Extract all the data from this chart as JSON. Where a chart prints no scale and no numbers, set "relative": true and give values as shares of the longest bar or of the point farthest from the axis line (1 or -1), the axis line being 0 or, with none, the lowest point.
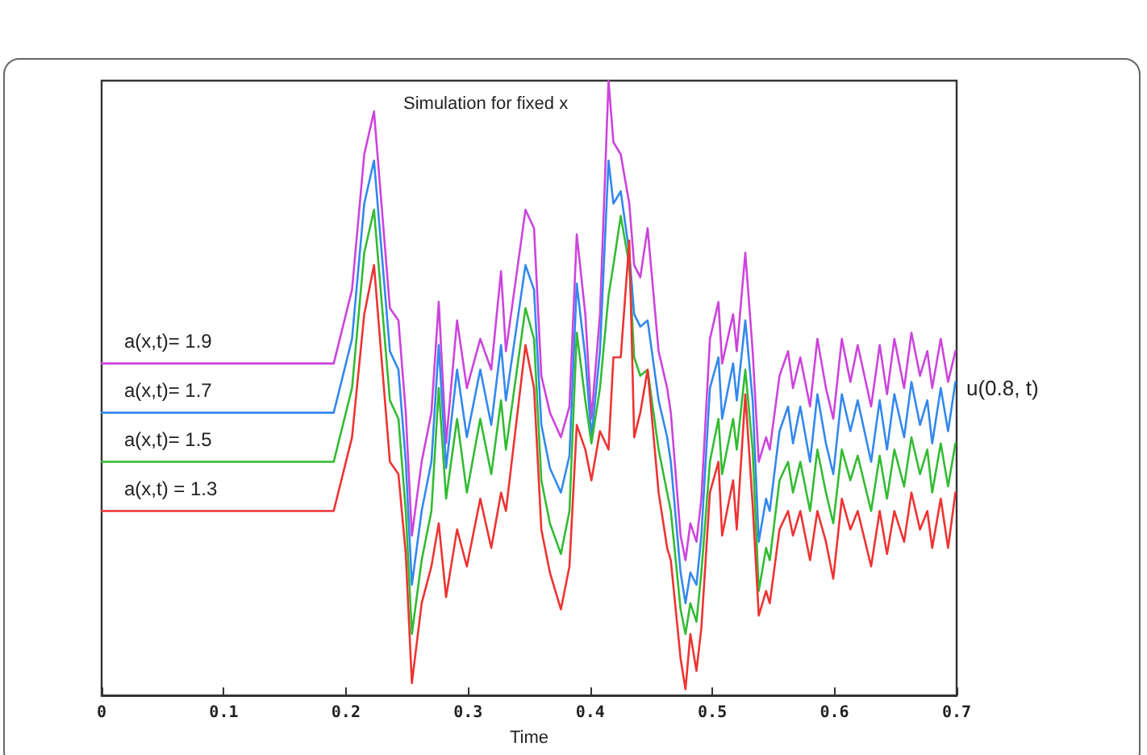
{
  "chart_data": {
    "type": "line",
    "title": "Simulation for fixed x",
    "xlabel": "Time",
    "ylabel": "u(0.8, t)",
    "relative": true,
    "grid": false,
    "legend": false,
    "marker": "none",
    "line_style": "solid",
    "xlim": [
      0,
      0.7
    ],
    "xticks": [
      0,
      0.1,
      0.2,
      0.3,
      0.4,
      0.5,
      0.6,
      0.7
    ],
    "x": [
      0,
      0.19,
      0.205,
      0.215,
      0.223,
      0.236,
      0.243,
      0.249,
      0.254,
      0.262,
      0.27,
      0.276,
      0.282,
      0.291,
      0.299,
      0.31,
      0.319,
      0.327,
      0.331,
      0.347,
      0.354,
      0.36,
      0.367,
      0.376,
      0.383,
      0.389,
      0.396,
      0.401,
      0.408,
      0.415,
      0.419,
      0.425,
      0.432,
      0.436,
      0.441,
      0.447,
      0.456,
      0.463,
      0.466,
      0.474,
      0.478,
      0.482,
      0.487,
      0.491,
      0.498,
      0.505,
      0.508,
      0.517,
      0.52,
      0.527,
      0.533,
      0.538,
      0.544,
      0.547,
      0.555,
      0.562,
      0.566,
      0.572,
      0.58,
      0.586,
      0.593,
      0.599,
      0.606,
      0.613,
      0.619,
      0.63,
      0.637,
      0.643,
      0.649,
      0.657,
      0.663,
      0.67,
      0.676,
      0.68,
      0.687,
      0.693,
      0.699
    ],
    "series": [
      {
        "name": "a(x,t)= 1.9",
        "color": "#cc44dd",
        "values": [
          0.54,
          0.54,
          0.66,
          0.88,
          0.95,
          0.63,
          0.61,
          0.46,
          0.26,
          0.38,
          0.46,
          0.64,
          0.41,
          0.61,
          0.5,
          0.58,
          0.53,
          0.69,
          0.56,
          0.79,
          0.76,
          0.52,
          0.46,
          0.42,
          0.47,
          0.75,
          0.62,
          0.45,
          0.62,
          1.0,
          0.9,
          0.88,
          0.8,
          0.7,
          0.68,
          0.76,
          0.56,
          0.5,
          0.46,
          0.26,
          0.22,
          0.28,
          0.25,
          0.32,
          0.58,
          0.64,
          0.54,
          0.62,
          0.56,
          0.72,
          0.56,
          0.38,
          0.42,
          0.4,
          0.52,
          0.56,
          0.5,
          0.55,
          0.47,
          0.58,
          0.5,
          0.45,
          0.58,
          0.51,
          0.57,
          0.47,
          0.57,
          0.49,
          0.58,
          0.5,
          0.59,
          0.52,
          0.56,
          0.5,
          0.58,
          0.51,
          0.56
        ]
      },
      {
        "name": "a(x,t)= 1.7",
        "color": "#3388ee",
        "values": [
          0.46,
          0.46,
          0.58,
          0.8,
          0.87,
          0.56,
          0.53,
          0.38,
          0.18,
          0.3,
          0.38,
          0.57,
          0.37,
          0.53,
          0.42,
          0.53,
          0.44,
          0.57,
          0.48,
          0.7,
          0.66,
          0.44,
          0.37,
          0.33,
          0.39,
          0.67,
          0.55,
          0.42,
          0.56,
          0.87,
          0.8,
          0.82,
          0.72,
          0.62,
          0.6,
          0.61,
          0.48,
          0.42,
          0.38,
          0.2,
          0.15,
          0.2,
          0.18,
          0.26,
          0.5,
          0.55,
          0.45,
          0.54,
          0.48,
          0.61,
          0.48,
          0.25,
          0.32,
          0.3,
          0.43,
          0.47,
          0.41,
          0.47,
          0.38,
          0.49,
          0.41,
          0.36,
          0.49,
          0.43,
          0.48,
          0.38,
          0.48,
          0.4,
          0.49,
          0.42,
          0.51,
          0.44,
          0.48,
          0.41,
          0.5,
          0.43,
          0.51
        ]
      },
      {
        "name": "a(x,t)= 1.5",
        "color": "#33bb33",
        "values": [
          0.38,
          0.38,
          0.5,
          0.72,
          0.79,
          0.48,
          0.45,
          0.3,
          0.1,
          0.22,
          0.3,
          0.5,
          0.32,
          0.45,
          0.33,
          0.45,
          0.36,
          0.48,
          0.4,
          0.63,
          0.58,
          0.35,
          0.28,
          0.23,
          0.3,
          0.59,
          0.48,
          0.41,
          0.5,
          0.65,
          0.7,
          0.78,
          0.7,
          0.55,
          0.52,
          0.53,
          0.4,
          0.33,
          0.3,
          0.14,
          0.1,
          0.15,
          0.12,
          0.2,
          0.38,
          0.45,
          0.36,
          0.45,
          0.4,
          0.53,
          0.4,
          0.17,
          0.24,
          0.22,
          0.35,
          0.38,
          0.33,
          0.38,
          0.3,
          0.4,
          0.33,
          0.28,
          0.4,
          0.35,
          0.39,
          0.3,
          0.39,
          0.32,
          0.4,
          0.34,
          0.42,
          0.36,
          0.4,
          0.33,
          0.41,
          0.34,
          0.41
        ]
      },
      {
        "name": "a(x,t) = 1.3",
        "color": "#ee3333",
        "values": [
          0.3,
          0.3,
          0.42,
          0.62,
          0.7,
          0.38,
          0.36,
          0.23,
          0.02,
          0.15,
          0.21,
          0.28,
          0.16,
          0.27,
          0.21,
          0.32,
          0.24,
          0.33,
          0.3,
          0.57,
          0.5,
          0.27,
          0.2,
          0.14,
          0.21,
          0.44,
          0.4,
          0.35,
          0.43,
          0.4,
          0.55,
          0.55,
          0.74,
          0.42,
          0.46,
          0.53,
          0.33,
          0.24,
          0.22,
          0.06,
          0.01,
          0.1,
          0.04,
          0.11,
          0.33,
          0.38,
          0.26,
          0.35,
          0.27,
          0.49,
          0.31,
          0.13,
          0.17,
          0.15,
          0.27,
          0.3,
          0.26,
          0.3,
          0.22,
          0.3,
          0.25,
          0.19,
          0.32,
          0.27,
          0.3,
          0.21,
          0.3,
          0.23,
          0.3,
          0.25,
          0.33,
          0.27,
          0.3,
          0.24,
          0.32,
          0.24,
          0.33
        ]
      }
    ]
  }
}
